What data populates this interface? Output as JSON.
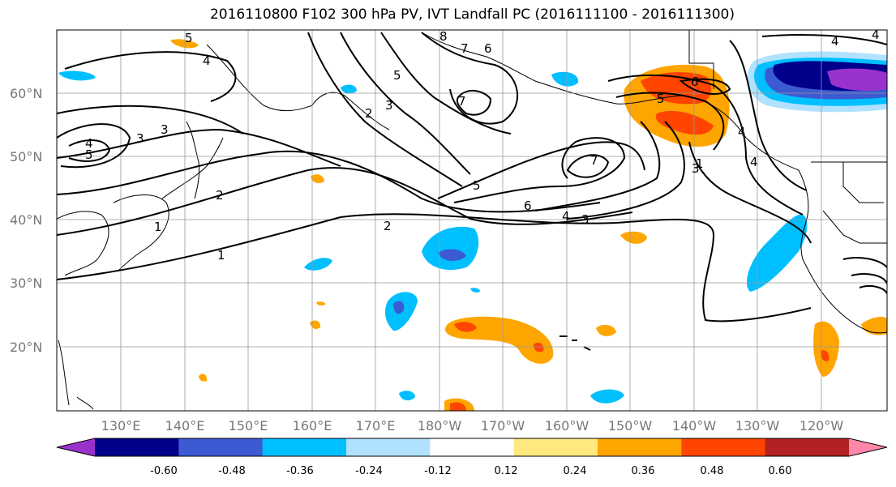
{
  "title": "2016110800 F102 300 hPa PV, IVT Landfall PC (2016111100 - 2016111300)",
  "lat_labels": [
    "60°N",
    "50°N",
    "40°N",
    "30°N",
    "20°N"
  ],
  "lon_labels": [
    "130°E",
    "140°E",
    "150°E",
    "160°E",
    "170°E",
    "180°W",
    "170°W",
    "160°W",
    "150°W",
    "140°W",
    "130°W",
    "120°W"
  ],
  "colorbar": {
    "colors": [
      "#9932cc",
      "#00008b",
      "#3c5ad2",
      "#00bfff",
      "#b0e2ff",
      "#ffffff",
      "#ffe97f",
      "#ffa500",
      "#ff4500",
      "#b22222",
      "#ff88aa"
    ],
    "ticks": [
      "-0.60",
      "-0.48",
      "-0.36",
      "-0.24",
      "-0.12",
      "0.12",
      "0.24",
      "0.36",
      "0.48",
      "0.60"
    ],
    "extend": "both"
  },
  "contour_labels": [
    "5",
    "4",
    "3",
    "4",
    "5",
    "3",
    "2",
    "3",
    "5",
    "8",
    "7",
    "6",
    "7",
    "2",
    "1",
    "1",
    "6",
    "5",
    "4",
    "3",
    "2",
    "7",
    "5",
    "6",
    "4",
    "4",
    "3",
    "1",
    "4",
    "4"
  ]
}
